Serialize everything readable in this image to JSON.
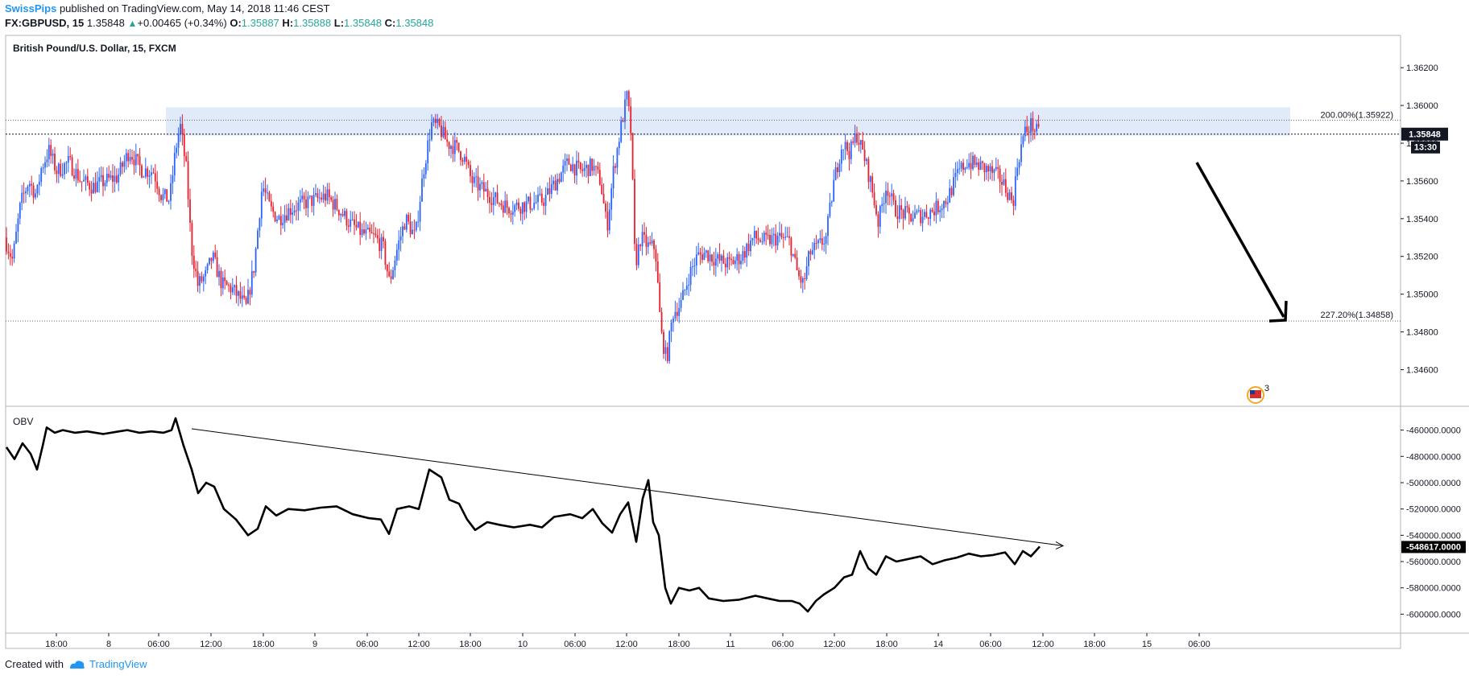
{
  "header": {
    "author": "SwissPips",
    "published": "published on TradingView.com, May 14, 2018 11:46 CEST",
    "symbol": "FX:GBPUSD, 15",
    "last": "1.35848",
    "change": "+0.00465 (+0.34%)",
    "o_label": "O:",
    "o_val": "1.35887",
    "h_label": "H:",
    "h_val": "1.35888",
    "l_label": "L:",
    "l_val": "1.35848",
    "c_label": "C:",
    "c_val": "1.35848"
  },
  "footer": {
    "created_with": "Created with",
    "brand": "TradingView"
  },
  "colors": {
    "up": "#2962ff",
    "down": "#e91e2e",
    "zone": "#dce6f7",
    "obv": "#000000"
  },
  "chart_data": [
    {
      "type": "candlestick",
      "title": "British Pound/U.S. Dollar, 15, FXCM",
      "yticks": [
        "1.36200",
        "1.36000",
        "1.35800",
        "1.35600",
        "1.35400",
        "1.35200",
        "1.35000",
        "1.34800",
        "1.34600"
      ],
      "ylim": [
        1.3447,
        1.3632
      ],
      "price_badge": "1.35848",
      "countdown_badge": "13:30",
      "annotations": [
        {
          "text": "200.00%(1.35922)",
          "value": 1.35922
        },
        {
          "text": "227.20%(1.34858)",
          "value": 1.34858
        }
      ],
      "zone": {
        "from": 1.3584,
        "to": 1.3599
      },
      "event_badge": "3",
      "price_path": [
        [
          0,
          1.353
        ],
        [
          10,
          1.3518
        ],
        [
          20,
          1.3548
        ],
        [
          30,
          1.356
        ],
        [
          40,
          1.3552
        ],
        [
          45,
          1.3566
        ],
        [
          55,
          1.3576
        ],
        [
          65,
          1.3565
        ],
        [
          80,
          1.357
        ],
        [
          95,
          1.356
        ],
        [
          110,
          1.3557
        ],
        [
          125,
          1.356
        ],
        [
          140,
          1.3562
        ],
        [
          155,
          1.3576
        ],
        [
          170,
          1.3566
        ],
        [
          185,
          1.3565
        ],
        [
          195,
          1.3552
        ],
        [
          205,
          1.355
        ],
        [
          212,
          1.3575
        ],
        [
          218,
          1.359
        ],
        [
          226,
          1.3565
        ],
        [
          232,
          1.3525
        ],
        [
          240,
          1.3505
        ],
        [
          250,
          1.351
        ],
        [
          258,
          1.352
        ],
        [
          270,
          1.3505
        ],
        [
          282,
          1.3503
        ],
        [
          292,
          1.3498
        ],
        [
          300,
          1.3493
        ],
        [
          310,
          1.3515
        ],
        [
          320,
          1.3558
        ],
        [
          330,
          1.3545
        ],
        [
          340,
          1.354
        ],
        [
          355,
          1.3545
        ],
        [
          370,
          1.3548
        ],
        [
          385,
          1.355
        ],
        [
          400,
          1.3552
        ],
        [
          415,
          1.3545
        ],
        [
          430,
          1.3537
        ],
        [
          445,
          1.3532
        ],
        [
          460,
          1.353
        ],
        [
          470,
          1.3525
        ],
        [
          478,
          1.3506
        ],
        [
          488,
          1.3525
        ],
        [
          498,
          1.354
        ],
        [
          510,
          1.353
        ],
        [
          520,
          1.3565
        ],
        [
          530,
          1.359
        ],
        [
          540,
          1.3588
        ],
        [
          550,
          1.358
        ],
        [
          560,
          1.3578
        ],
        [
          570,
          1.3573
        ],
        [
          580,
          1.356
        ],
        [
          595,
          1.3555
        ],
        [
          610,
          1.355
        ],
        [
          625,
          1.3546
        ],
        [
          640,
          1.3547
        ],
        [
          655,
          1.3548
        ],
        [
          670,
          1.355
        ],
        [
          685,
          1.356
        ],
        [
          700,
          1.357
        ],
        [
          715,
          1.3565
        ],
        [
          730,
          1.3568
        ],
        [
          740,
          1.356
        ],
        [
          748,
          1.3535
        ],
        [
          756,
          1.3565
        ],
        [
          766,
          1.359
        ],
        [
          773,
          1.3605
        ],
        [
          778,
          1.3585
        ],
        [
          783,
          1.3515
        ],
        [
          790,
          1.353
        ],
        [
          800,
          1.3525
        ],
        [
          808,
          1.3525
        ],
        [
          815,
          1.348
        ],
        [
          822,
          1.3465
        ],
        [
          830,
          1.349
        ],
        [
          840,
          1.3495
        ],
        [
          850,
          1.351
        ],
        [
          860,
          1.352
        ],
        [
          870,
          1.3522
        ],
        [
          885,
          1.3518
        ],
        [
          900,
          1.3516
        ],
        [
          915,
          1.352
        ],
        [
          930,
          1.353
        ],
        [
          945,
          1.3528
        ],
        [
          960,
          1.353
        ],
        [
          975,
          1.3528
        ],
        [
          985,
          1.351
        ],
        [
          992,
          1.3505
        ],
        [
          1000,
          1.3522
        ],
        [
          1010,
          1.3525
        ],
        [
          1020,
          1.353
        ],
        [
          1030,
          1.356
        ],
        [
          1040,
          1.358
        ],
        [
          1050,
          1.3575
        ],
        [
          1058,
          1.3585
        ],
        [
          1068,
          1.3572
        ],
        [
          1075,
          1.356
        ],
        [
          1085,
          1.3538
        ],
        [
          1095,
          1.3558
        ],
        [
          1105,
          1.3545
        ],
        [
          1115,
          1.3543
        ],
        [
          1125,
          1.3541
        ],
        [
          1140,
          1.3542
        ],
        [
          1155,
          1.3545
        ],
        [
          1170,
          1.355
        ],
        [
          1185,
          1.3565
        ],
        [
          1195,
          1.357
        ],
        [
          1210,
          1.3568
        ],
        [
          1220,
          1.3566
        ],
        [
          1235,
          1.3562
        ],
        [
          1245,
          1.3555
        ],
        [
          1252,
          1.3548
        ],
        [
          1258,
          1.357
        ],
        [
          1266,
          1.3585
        ],
        [
          1275,
          1.359
        ],
        [
          1283,
          1.3585
        ]
      ]
    },
    {
      "type": "line",
      "title": "OBV",
      "yticks": [
        "-460000.0000",
        "-480000.0000",
        "-500000.0000",
        "-520000.0000",
        "-540000.0000",
        "-560000.0000",
        "-580000.0000",
        "-600000.0000"
      ],
      "ylim": [
        -612000,
        -448000
      ],
      "value_badge": "-548617.0000",
      "series": [
        [
          0,
          -473000
        ],
        [
          10,
          -482000
        ],
        [
          20,
          -470000
        ],
        [
          30,
          -478000
        ],
        [
          38,
          -490000
        ],
        [
          45,
          -472000
        ],
        [
          50,
          -458000
        ],
        [
          60,
          -462000
        ],
        [
          70,
          -460000
        ],
        [
          85,
          -462000
        ],
        [
          100,
          -461000
        ],
        [
          120,
          -463000
        ],
        [
          140,
          -461000
        ],
        [
          150,
          -460000
        ],
        [
          165,
          -462000
        ],
        [
          180,
          -461000
        ],
        [
          195,
          -462000
        ],
        [
          205,
          -460000
        ],
        [
          210,
          -451000
        ],
        [
          220,
          -472000
        ],
        [
          230,
          -490000
        ],
        [
          238,
          -508000
        ],
        [
          248,
          -500000
        ],
        [
          258,
          -503000
        ],
        [
          270,
          -520000
        ],
        [
          285,
          -528000
        ],
        [
          300,
          -540000
        ],
        [
          312,
          -535000
        ],
        [
          322,
          -518000
        ],
        [
          335,
          -525000
        ],
        [
          350,
          -520000
        ],
        [
          370,
          -521000
        ],
        [
          390,
          -519000
        ],
        [
          410,
          -518000
        ],
        [
          430,
          -524000
        ],
        [
          450,
          -527000
        ],
        [
          465,
          -528000
        ],
        [
          475,
          -539000
        ],
        [
          485,
          -520000
        ],
        [
          500,
          -518000
        ],
        [
          512,
          -520000
        ],
        [
          525,
          -490000
        ],
        [
          540,
          -496000
        ],
        [
          550,
          -513000
        ],
        [
          562,
          -516000
        ],
        [
          572,
          -528000
        ],
        [
          582,
          -536000
        ],
        [
          597,
          -530000
        ],
        [
          612,
          -532000
        ],
        [
          630,
          -534000
        ],
        [
          650,
          -532000
        ],
        [
          665,
          -534000
        ],
        [
          680,
          -526000
        ],
        [
          700,
          -524000
        ],
        [
          715,
          -527000
        ],
        [
          728,
          -520000
        ],
        [
          740,
          -531000
        ],
        [
          752,
          -538000
        ],
        [
          762,
          -524000
        ],
        [
          772,
          -515000
        ],
        [
          782,
          -545000
        ],
        [
          790,
          -512000
        ],
        [
          797,
          -498000
        ],
        [
          803,
          -530000
        ],
        [
          810,
          -540000
        ],
        [
          818,
          -580000
        ],
        [
          825,
          -592000
        ],
        [
          835,
          -580000
        ],
        [
          848,
          -582000
        ],
        [
          860,
          -580000
        ],
        [
          872,
          -588000
        ],
        [
          890,
          -590000
        ],
        [
          910,
          -589000
        ],
        [
          930,
          -586000
        ],
        [
          945,
          -588000
        ],
        [
          960,
          -590000
        ],
        [
          975,
          -590000
        ],
        [
          985,
          -592000
        ],
        [
          995,
          -598000
        ],
        [
          1005,
          -590000
        ],
        [
          1015,
          -585000
        ],
        [
          1028,
          -580000
        ],
        [
          1040,
          -572000
        ],
        [
          1050,
          -570000
        ],
        [
          1060,
          -552000
        ],
        [
          1070,
          -565000
        ],
        [
          1080,
          -570000
        ],
        [
          1092,
          -556000
        ],
        [
          1105,
          -560000
        ],
        [
          1120,
          -558000
        ],
        [
          1135,
          -556000
        ],
        [
          1150,
          -562000
        ],
        [
          1165,
          -559000
        ],
        [
          1180,
          -557000
        ],
        [
          1195,
          -554000
        ],
        [
          1210,
          -556000
        ],
        [
          1225,
          -555000
        ],
        [
          1240,
          -553000
        ],
        [
          1252,
          -562000
        ],
        [
          1262,
          -552000
        ],
        [
          1272,
          -556000
        ],
        [
          1283,
          -548617
        ]
      ],
      "trendline": {
        "from": [
          230,
          -459000
        ],
        "to": [
          1312,
          -548000
        ]
      }
    }
  ],
  "x_axis": {
    "labels": [
      {
        "text": "18:00",
        "pos": 62
      },
      {
        "text": "8",
        "pos": 127
      },
      {
        "text": "06:00",
        "pos": 189
      },
      {
        "text": "12:00",
        "pos": 254
      },
      {
        "text": "18:00",
        "pos": 319
      },
      {
        "text": "9",
        "pos": 383
      },
      {
        "text": "06:00",
        "pos": 448
      },
      {
        "text": "12:00",
        "pos": 512
      },
      {
        "text": "18:00",
        "pos": 576
      },
      {
        "text": "10",
        "pos": 641
      },
      {
        "text": "06:00",
        "pos": 706
      },
      {
        "text": "12:00",
        "pos": 770
      },
      {
        "text": "18:00",
        "pos": 835
      },
      {
        "text": "11",
        "pos": 899
      },
      {
        "text": "06:00",
        "pos": 964
      },
      {
        "text": "12:00",
        "pos": 1028
      },
      {
        "text": "18:00",
        "pos": 1093
      },
      {
        "text": "14",
        "pos": 1157
      },
      {
        "text": "06:00",
        "pos": 1222
      },
      {
        "text": "12:00",
        "pos": 1287
      },
      {
        "text": "18:00",
        "pos": 1351
      },
      {
        "text": "15",
        "pos": 1416
      },
      {
        "text": "06:00",
        "pos": 1481
      }
    ]
  }
}
